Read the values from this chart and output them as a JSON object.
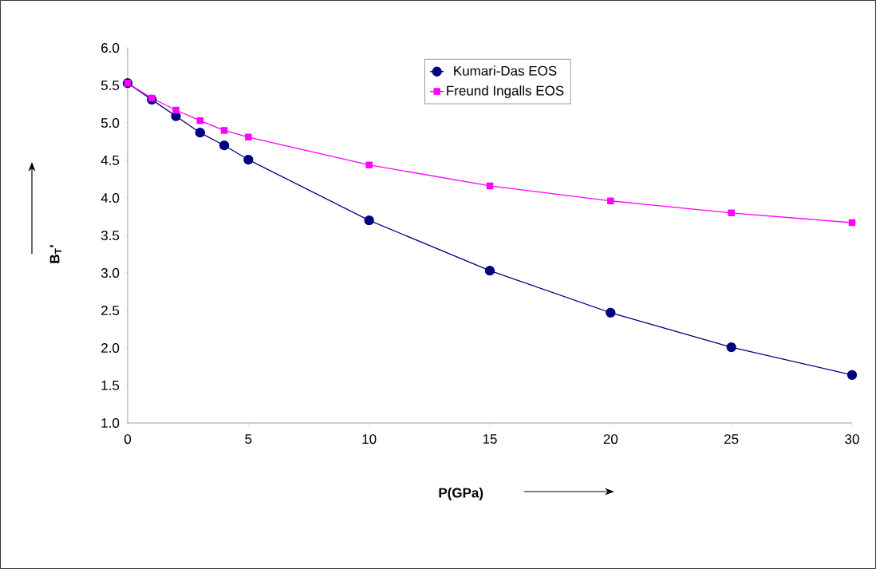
{
  "chart_data": {
    "type": "line",
    "xlabel": "P(GPa)",
    "ylabel": "B$_{T}$'",
    "x": [
      0,
      1,
      2,
      3,
      4,
      5,
      10,
      15,
      20,
      25,
      30
    ],
    "series": [
      {
        "name": "Kumari-Das EOS",
        "color": "#000080",
        "marker": "circle",
        "values": [
          5.53,
          5.31,
          5.09,
          4.87,
          4.7,
          4.51,
          3.7,
          3.03,
          2.47,
          2.01,
          1.64
        ]
      },
      {
        "name": "Freund Ingalls EOS",
        "color": "#ff00ff",
        "marker": "square",
        "values": [
          5.53,
          5.33,
          5.17,
          5.03,
          4.9,
          4.81,
          4.44,
          4.16,
          3.96,
          3.8,
          3.67
        ]
      }
    ],
    "xlim": [
      0,
      30
    ],
    "xticks": [
      0,
      5,
      10,
      15,
      20,
      25,
      30
    ],
    "ylim": [
      1.0,
      6.0
    ],
    "yticks": [
      {
        "value": 1.0,
        "label": "1.0"
      },
      {
        "value": 1.5,
        "label": "1.5"
      },
      {
        "value": 2.0,
        "label": "2.0"
      },
      {
        "value": 2.5,
        "label": "2.5"
      },
      {
        "value": 3.0,
        "label": "3.0"
      },
      {
        "value": 3.5,
        "label": "3.5"
      },
      {
        "value": 4.0,
        "label": "4.0"
      },
      {
        "value": 4.5,
        "label": "4.5"
      },
      {
        "value": 5.0,
        "label": "5.0"
      },
      {
        "value": 5.5,
        "label": "5.5"
      },
      {
        "value": 6.0,
        "label": "6.0"
      }
    ],
    "legend": "top right",
    "grid": false,
    "line_style": "solid"
  }
}
